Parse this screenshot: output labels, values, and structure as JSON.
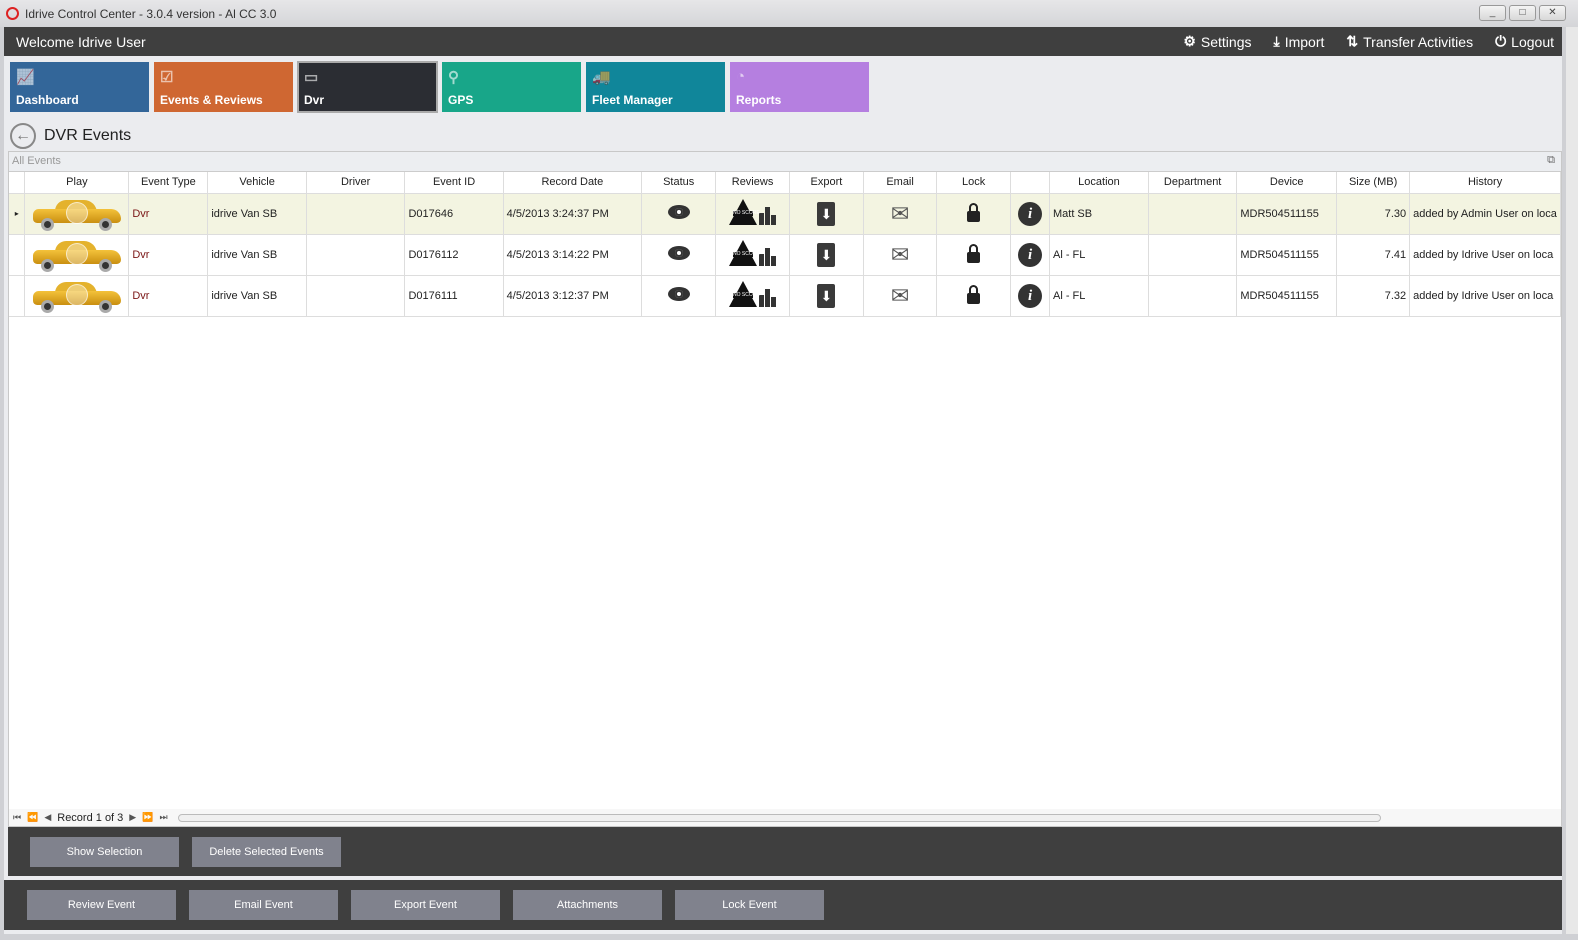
{
  "window": {
    "title": "Idrive Control Center - 3.0.4 version - Al CC 3.0",
    "minimize": "_",
    "maximize": "□",
    "close": "✕"
  },
  "topbar": {
    "welcome": "Welcome Idrive User",
    "settings": "Settings",
    "import": "Import",
    "transfer": "Transfer Activities",
    "logout": "Logout"
  },
  "tiles": [
    {
      "label": "Dashboard",
      "color": "#336699",
      "icon": "chart-icon"
    },
    {
      "label": "Events & Reviews",
      "color": "#cf6732",
      "icon": "clipboard-icon"
    },
    {
      "label": "Dvr",
      "color": "#2b2d33",
      "icon": "dvr-icon"
    },
    {
      "label": "GPS",
      "color": "#18a689",
      "icon": "map-pin-icon"
    },
    {
      "label": "Fleet Manager",
      "color": "#10869a",
      "icon": "vehicles-icon"
    },
    {
      "label": "Reports",
      "color": "#b57fe0",
      "icon": "pie-icon"
    }
  ],
  "page": {
    "title": "DVR Events",
    "group": "All Events"
  },
  "table": {
    "columns": [
      "Play",
      "Event Type",
      "Vehicle",
      "Driver",
      "Event ID",
      "Record Date",
      "Status",
      "Reviews",
      "Export",
      "Email",
      "Lock",
      "",
      "Location",
      "Department",
      "Device",
      "Size (MB)",
      "History"
    ],
    "no_score": "NO SCORE",
    "rows": [
      {
        "type": "Dvr",
        "vehicle": "idrive Van SB",
        "driver": "",
        "id": "D017646",
        "date": "4/5/2013 3:24:37 PM",
        "location": "Matt SB",
        "department": "",
        "device": "MDR504511155",
        "size": "7.30",
        "history": "added by Admin User on loca"
      },
      {
        "type": "Dvr",
        "vehicle": "idrive Van SB",
        "driver": "",
        "id": "D0176112",
        "date": "4/5/2013 3:14:22 PM",
        "location": "Al - FL",
        "department": "",
        "device": "MDR504511155",
        "size": "7.41",
        "history": "added by Idrive User on loca"
      },
      {
        "type": "Dvr",
        "vehicle": "idrive Van SB",
        "driver": "",
        "id": "D0176111",
        "date": "4/5/2013 3:12:37 PM",
        "location": "Al - FL",
        "department": "",
        "device": "MDR504511155",
        "size": "7.32",
        "history": "added by Idrive User on loca"
      }
    ]
  },
  "pager": {
    "text": "Record 1 of 3"
  },
  "panel1": {
    "show_selection": "Show Selection",
    "delete_selected": "Delete Selected  Events"
  },
  "panel2": {
    "review": "Review Event",
    "email": "Email Event",
    "export": "Export Event",
    "attachments": "Attachments",
    "lock": "Lock Event"
  }
}
